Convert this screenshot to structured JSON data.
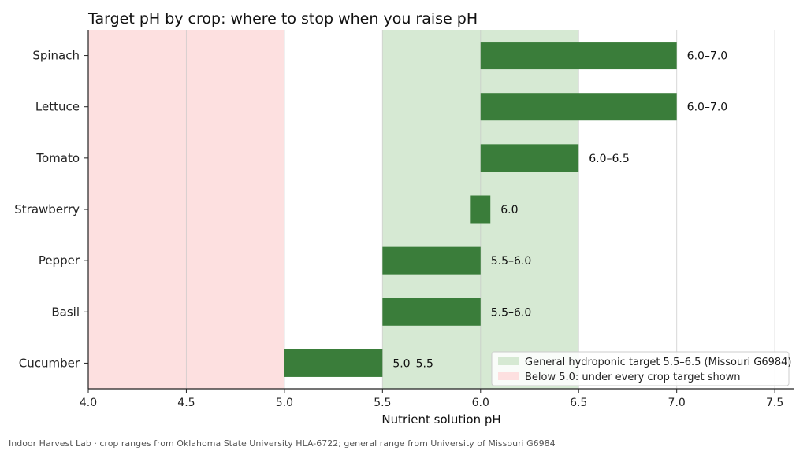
{
  "chart_data": {
    "type": "bar",
    "orientation": "horizontal-range",
    "title": "Target pH by crop: where to stop when you raise pH",
    "xlabel": "Nutrient solution pH",
    "ylabel": "",
    "xlim": [
      4.0,
      7.6
    ],
    "xticks": [
      "4.0",
      "4.5",
      "5.0",
      "5.5",
      "6.0",
      "6.5",
      "7.0",
      "7.5"
    ],
    "xtick_values": [
      4.0,
      4.5,
      5.0,
      5.5,
      6.0,
      6.5,
      7.0,
      7.5
    ],
    "grid": "vertical",
    "bar_color": "#3a7d3a",
    "crops": [
      {
        "name": "Spinach",
        "low": 6.0,
        "high": 7.0,
        "label": "6.0–7.0"
      },
      {
        "name": "Lettuce",
        "low": 6.0,
        "high": 7.0,
        "label": "6.0–7.0"
      },
      {
        "name": "Tomato",
        "low": 6.0,
        "high": 6.5,
        "label": "6.0–6.5"
      },
      {
        "name": "Strawberry",
        "low": 5.95,
        "high": 6.05,
        "label": "6.0"
      },
      {
        "name": "Pepper",
        "low": 5.5,
        "high": 6.0,
        "label": "5.5–6.0"
      },
      {
        "name": "Basil",
        "low": 5.5,
        "high": 6.0,
        "label": "5.5–6.0"
      },
      {
        "name": "Cucumber",
        "low": 5.0,
        "high": 5.5,
        "label": "5.0–5.5"
      }
    ],
    "bands": [
      {
        "from": 5.5,
        "to": 6.5,
        "color": "#d6e9d3",
        "legend": "General hydroponic target 5.5–6.5 (Missouri G6984)"
      },
      {
        "from": 4.0,
        "to": 5.0,
        "color": "#fde0e0",
        "legend": "Below 5.0: under every crop target shown"
      }
    ],
    "legend_position": "bottom-right"
  },
  "footer": "Indoor Harvest Lab · crop ranges from Oklahoma State University HLA-6722; general range from University of Missouri G6984"
}
